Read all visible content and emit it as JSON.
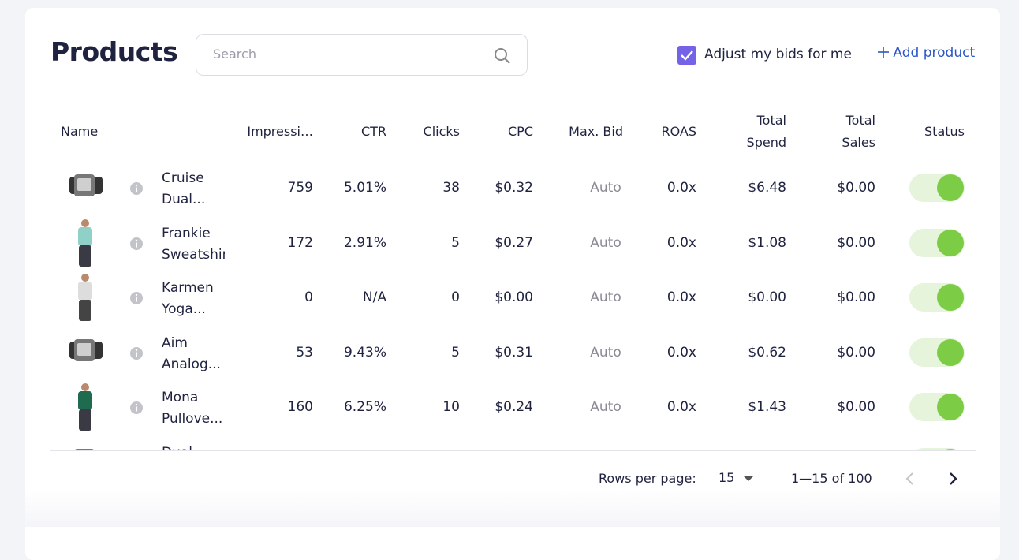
{
  "header": {
    "title": "Products",
    "search_placeholder": "Search",
    "auto_bid_label": "Adjust my bids for me",
    "auto_bid_checked": true,
    "add_button": "Add product"
  },
  "table": {
    "columns": [
      "Name",
      "Impressi…",
      "CTR",
      "Clicks",
      "CPC",
      "Max. Bid",
      "ROAS",
      "Total Spend",
      "Total Sales",
      "Status"
    ],
    "rows": [
      {
        "name": "Cruise Dual...",
        "cells": [
          "759",
          "5.01%",
          "38",
          "$0.32",
          "Auto",
          "0.0x",
          "$6.48",
          "$0.00"
        ],
        "active": true
      },
      {
        "name": "Frankie Sweatshirt",
        "cells": [
          "172",
          "2.91%",
          "5",
          "$0.27",
          "Auto",
          "0.0x",
          "$1.08",
          "$0.00"
        ],
        "active": true
      },
      {
        "name": "Karmen Yoga...",
        "cells": [
          "0",
          "N/A",
          "0",
          "$0.00",
          "Auto",
          "0.0x",
          "$0.00",
          "$0.00"
        ],
        "active": true
      },
      {
        "name": "Aim Analog...",
        "cells": [
          "53",
          "9.43%",
          "5",
          "$0.31",
          "Auto",
          "0.0x",
          "$0.62",
          "$0.00"
        ],
        "active": true
      },
      {
        "name": "Mona Pullove...",
        "cells": [
          "160",
          "6.25%",
          "10",
          "$0.24",
          "Auto",
          "0.0x",
          "$1.43",
          "$0.00"
        ],
        "active": true
      }
    ],
    "partial_row": {
      "name": "Dual...",
      "active": true
    }
  },
  "footer": {
    "rows_per_page_label": "Rows per page:",
    "rows_per_page": "15",
    "range": "1—15 of 100"
  }
}
